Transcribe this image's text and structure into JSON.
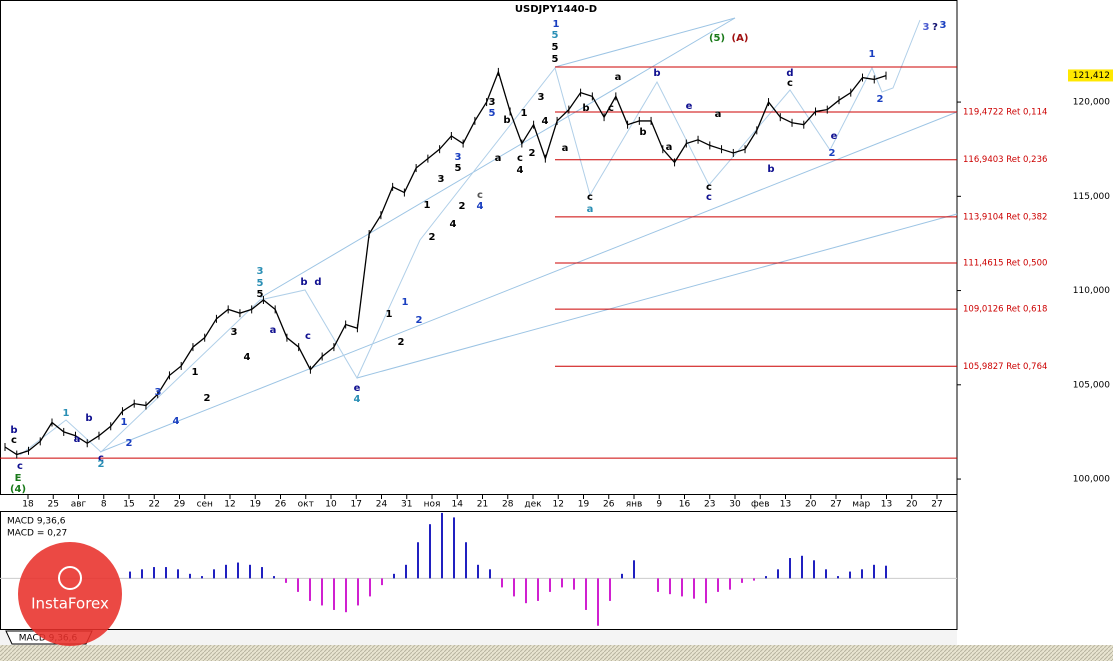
{
  "chart_data": [
    {
      "type": "line",
      "title": "USDJPY1440-D",
      "color": "#000000",
      "values": [
        101.7,
        101.3,
        101.5,
        102.0,
        103.0,
        102.5,
        102.3,
        101.9,
        102.3,
        102.8,
        103.6,
        104.0,
        103.9,
        104.5,
        105.5,
        106.0,
        107.0,
        107.5,
        108.5,
        109.0,
        108.8,
        109.0,
        109.5,
        109.0,
        107.5,
        107.0,
        105.8,
        106.5,
        107.0,
        108.2,
        108.0,
        113,
        114,
        115.5,
        115.2,
        116.5,
        117.0,
        117.5,
        118.2,
        117.8,
        119.0,
        120,
        121.6,
        119.5,
        117.8,
        118.8,
        117,
        119,
        119.6,
        120.5,
        120.3,
        119.2,
        120.3,
        118.8,
        119,
        119,
        117.5,
        116.8,
        117.8,
        118.0,
        117.7,
        117.5,
        117.3,
        117.5,
        118.5,
        120,
        119.2,
        118.9,
        118.8,
        119.5,
        119.6,
        120.1,
        120.5,
        121.3,
        121.2,
        121.4
      ],
      "x_labels": [
        "18",
        "25",
        "авг",
        "8",
        "15",
        "22",
        "29",
        "сен",
        "12",
        "19",
        "26",
        "окт",
        "10",
        "17",
        "24",
        "31",
        "ноя",
        "14",
        "21",
        "28",
        "дек",
        "12",
        "19",
        "26",
        "янв",
        "9",
        "16",
        "23",
        "30",
        "фев",
        "13",
        "20",
        "27",
        "мар",
        "13",
        "20",
        "27"
      ],
      "ylim": [
        99.26,
        124.46
      ],
      "yticks": [
        {
          "value": 100,
          "label": "100,000"
        },
        {
          "value": 105,
          "label": "105,000"
        },
        {
          "value": 110,
          "label": "110,000"
        },
        {
          "value": 115,
          "label": "115,000"
        },
        {
          "value": 120,
          "label": "120,000"
        }
      ],
      "last_price": {
        "value": 121.412,
        "label": "121,412"
      },
      "levels": [
        {
          "value": 119.4722,
          "label": "119,4722 Ret 0,114"
        },
        {
          "value": 116.9403,
          "label": "116,9403 Ret 0,236"
        },
        {
          "value": 113.9104,
          "label": "113,9104 Ret 0,382"
        },
        {
          "value": 111.4615,
          "label": "111,4615 Ret 0,500"
        },
        {
          "value": 109.0126,
          "label": "109,0126 Ret 0,618"
        },
        {
          "value": 105.9827,
          "label": "105,9827 Ret 0,764"
        }
      ],
      "level_color": "#cc0000",
      "lines": [
        121.86,
        101.11
      ],
      "annotations": [
        {
          "text": "1",
          "color": "#1a3fc0"
        },
        {
          "text": "5",
          "color": "#2a8fb5"
        },
        {
          "text": "5",
          "color": "#000000"
        },
        {
          "text": "5",
          "color": "#000000"
        },
        {
          "text": "(5)",
          "color": "#1a7a1a"
        },
        {
          "text": "(A)",
          "color": "#a01010"
        },
        {
          "text": "3",
          "color": "#4a5ad0"
        },
        {
          "text": "?",
          "color": "#101070"
        },
        {
          "text": "3",
          "color": "#1a3fc0"
        },
        {
          "text": "1",
          "color": "#1a3fc0"
        },
        {
          "text": "2",
          "color": "#1a3fc0"
        },
        {
          "text": "2",
          "color": "#1a3fc0"
        },
        {
          "text": "b",
          "color": "#101090"
        },
        {
          "text": "a",
          "color": "#000000"
        },
        {
          "text": "d",
          "color": "#101090"
        },
        {
          "text": "c",
          "color": "#000000"
        },
        {
          "text": "b",
          "color": "#000000"
        },
        {
          "text": "c",
          "color": "#000000"
        },
        {
          "text": "b",
          "color": "#000000"
        },
        {
          "text": "a",
          "color": "#000000"
        },
        {
          "text": "e",
          "color": "#101090"
        },
        {
          "text": "a",
          "color": "#000000"
        },
        {
          "text": "c",
          "color": "#000000"
        },
        {
          "text": "c",
          "color": "#101090"
        },
        {
          "text": "b",
          "color": "#101090"
        },
        {
          "text": "e",
          "color": "#101090"
        },
        {
          "text": "a",
          "color": "#000000"
        },
        {
          "text": "c",
          "color": "#000000"
        },
        {
          "text": "a",
          "color": "#2a8fb5"
        },
        {
          "text": "3",
          "color": "#000000"
        },
        {
          "text": "5",
          "color": "#1a3fc0"
        },
        {
          "text": "b",
          "color": "#000000"
        },
        {
          "text": "1",
          "color": "#000000"
        },
        {
          "text": "c",
          "color": "#000000"
        },
        {
          "text": "4",
          "color": "#000000"
        },
        {
          "text": "2",
          "color": "#000000"
        },
        {
          "text": "3",
          "color": "#000000"
        },
        {
          "text": "4",
          "color": "#000000"
        },
        {
          "text": "3",
          "color": "#1a3fc0"
        },
        {
          "text": "5",
          "color": "#000000"
        },
        {
          "text": "3",
          "color": "#000000"
        },
        {
          "text": "c",
          "color": "#555555"
        },
        {
          "text": "4",
          "color": "#1a3fc0"
        },
        {
          "text": "a",
          "color": "#000000"
        },
        {
          "text": "1",
          "color": "#000000"
        },
        {
          "text": "2",
          "color": "#000000"
        },
        {
          "text": "4",
          "color": "#000000"
        },
        {
          "text": "2",
          "color": "#000000"
        },
        {
          "text": "1",
          "color": "#1a3fc0"
        },
        {
          "text": "2",
          "color": "#1a3fc0"
        },
        {
          "text": "1",
          "color": "#000000"
        },
        {
          "text": "2",
          "color": "#000000"
        },
        {
          "text": "e",
          "color": "#101090"
        },
        {
          "text": "4",
          "color": "#2a8fb5"
        },
        {
          "text": "c",
          "color": "#101090"
        },
        {
          "text": "a",
          "color": "#101090"
        },
        {
          "text": "b",
          "color": "#101090"
        },
        {
          "text": "d",
          "color": "#101090"
        },
        {
          "text": "3",
          "color": "#2a8fb5"
        },
        {
          "text": "5",
          "color": "#2a8fb5"
        },
        {
          "text": "5",
          "color": "#000000"
        },
        {
          "text": "3",
          "color": "#000000"
        },
        {
          "text": "4",
          "color": "#000000"
        },
        {
          "text": "1",
          "color": "#000000"
        },
        {
          "text": "2",
          "color": "#000000"
        },
        {
          "text": "3",
          "color": "#1a3fc0"
        },
        {
          "text": "4",
          "color": "#1a3fc0"
        },
        {
          "text": "1",
          "color": "#1a3fc0"
        },
        {
          "text": "2",
          "color": "#1a3fc0"
        },
        {
          "text": "b",
          "color": "#101090"
        },
        {
          "text": "a",
          "color": "#101090"
        },
        {
          "text": "1",
          "color": "#2a8fb5"
        },
        {
          "text": "c",
          "color": "#101090"
        },
        {
          "text": "2",
          "color": "#2a8fb5"
        },
        {
          "text": "b",
          "color": "#101090"
        },
        {
          "text": "c",
          "color": "#000000"
        },
        {
          "text": "c",
          "color": "#101090"
        },
        {
          "text": "E",
          "color": "#1a7a1a"
        },
        {
          "text": "(4)",
          "color": "#1a7a1a"
        }
      ]
    },
    {
      "type": "bar",
      "title": "MACD 9,36,6",
      "subtitle": "MACD = 0,27",
      "tab_label": "MACD 9,36,6",
      "watermark": "InstaForex",
      "positive_color": "#2020c0",
      "negative_color": "#d020d0",
      "values": [
        0.15,
        0.2,
        0.25,
        0.25,
        0.2,
        0.1,
        0.05,
        0.2,
        0.3,
        0.35,
        0.3,
        0.25,
        0.05,
        -0.1,
        -0.3,
        -0.5,
        -0.6,
        -0.7,
        -0.75,
        -0.6,
        -0.4,
        -0.15,
        0.1,
        0.3,
        0.8,
        1.2,
        1.45,
        1.35,
        0.8,
        0.3,
        0.2,
        -0.2,
        -0.4,
        -0.55,
        -0.5,
        -0.3,
        -0.2,
        -0.25,
        -0.7,
        -1.05,
        -0.5,
        0.1,
        0.4,
        0.0,
        -0.3,
        -0.35,
        -0.4,
        -0.45,
        -0.55,
        -0.3,
        -0.25,
        -0.1,
        -0.05,
        0.05,
        0.2,
        0.45,
        0.5,
        0.4,
        0.2,
        0.05,
        0.15,
        0.2,
        0.3,
        0.28
      ],
      "ylim": [
        -1.1,
        1.47
      ]
    }
  ]
}
